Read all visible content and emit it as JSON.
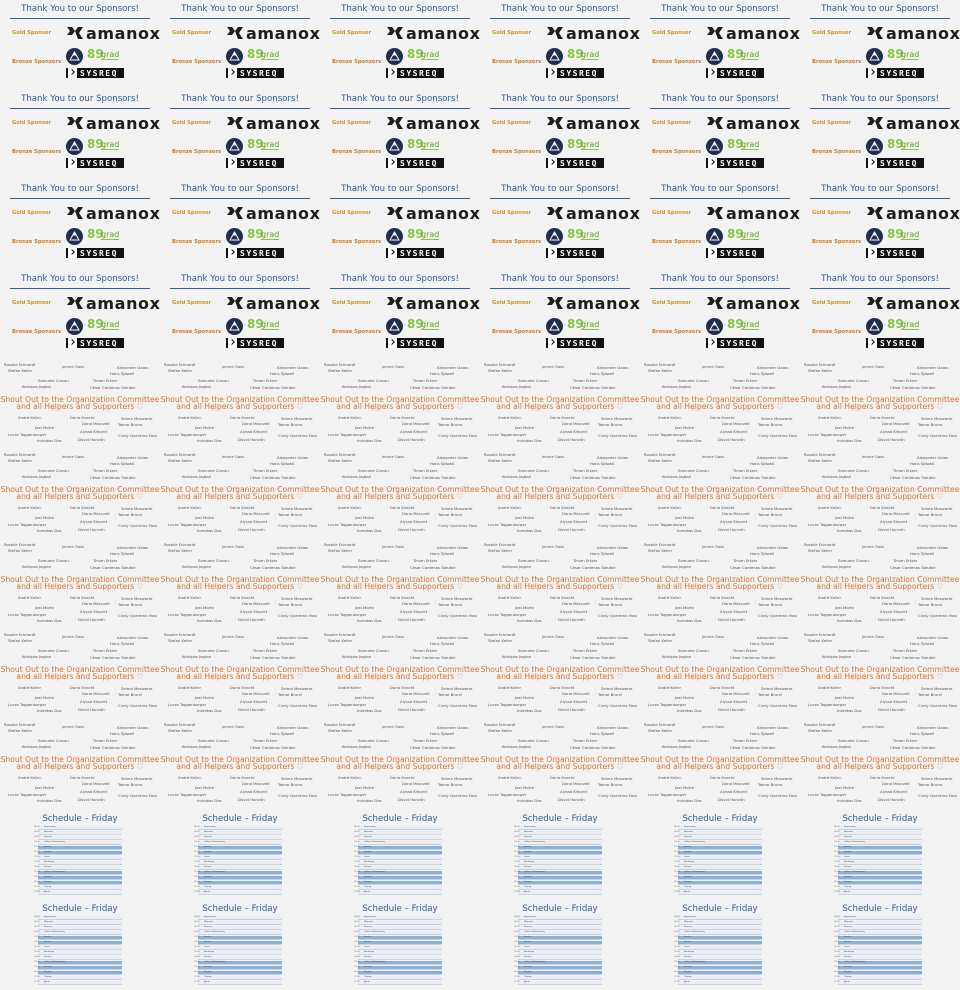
{
  "sponsors": {
    "title": "Thank You to our Sponsors!",
    "gold_label": "Gold Sponsor",
    "bronze_label": "Bronze Sponsors",
    "gold_logo": "amanox",
    "bronze_logos": [
      "89grad",
      "SYSREQ"
    ],
    "grad_number": "89",
    "grad_word": "grad"
  },
  "shoutout": {
    "line1": "Shout Out to the Organization Committee",
    "line2": "and all Helpers and Supporters ♡",
    "names_top": [
      "Rosalie Eckhardt",
      "Jennie Gass",
      "Alexander Gaias",
      "Stefan Keller",
      "Hans Sjöwall",
      "Samuele Clavau",
      "Timon Ertzer",
      "Kohlipas Jagtan",
      "César Cardenas Steuble"
    ],
    "names_bottom": [
      "André Keller",
      "Dario Knecht",
      "Selma Moswarte",
      "Dana Mosczelt",
      "Tamar Brunn",
      "Joel Morte",
      "Alyssa Klepert",
      "Lucas Toggenburger",
      "Cindy Quentmo Fass",
      "Indrakos Das",
      "David Horrath"
    ]
  },
  "schedule": {
    "title": "Schedule – Friday",
    "rows": [
      {
        "time": "08:30",
        "text": "Registration"
      },
      {
        "time": "09:00",
        "text": "Welcome"
      },
      {
        "time": "09:15",
        "text": "Keynote"
      },
      {
        "time": "10:00",
        "text": "Coffee & Networking"
      },
      {
        "time": "10:30",
        "text": "Session"
      },
      {
        "time": "11:15",
        "text": "Session"
      },
      {
        "time": "12:00",
        "text": "Lunch"
      },
      {
        "time": "13:00",
        "text": "Workshop"
      },
      {
        "time": "14:00",
        "text": "Session"
      },
      {
        "time": "15:00",
        "text": "Coffee & Networking"
      },
      {
        "time": "15:30",
        "text": "Session"
      },
      {
        "time": "16:15",
        "text": "Session"
      },
      {
        "time": "17:00",
        "text": "Closing"
      },
      {
        "time": "17:30",
        "text": "Apéro"
      }
    ]
  },
  "grid": {
    "columns": 6,
    "sections": [
      {
        "slide": "sponsors",
        "count": 4
      },
      {
        "slide": "shoutout",
        "count": 5
      },
      {
        "slide": "schedule",
        "count": 2
      }
    ]
  },
  "colors": {
    "title_blue": "#2d5a9a",
    "gold": "#c9932a",
    "bronze": "#d07a2a",
    "shout_orange": "#d9712a",
    "grad_green": "#8cc63f",
    "schedule_highlight": "#8db0d8"
  }
}
